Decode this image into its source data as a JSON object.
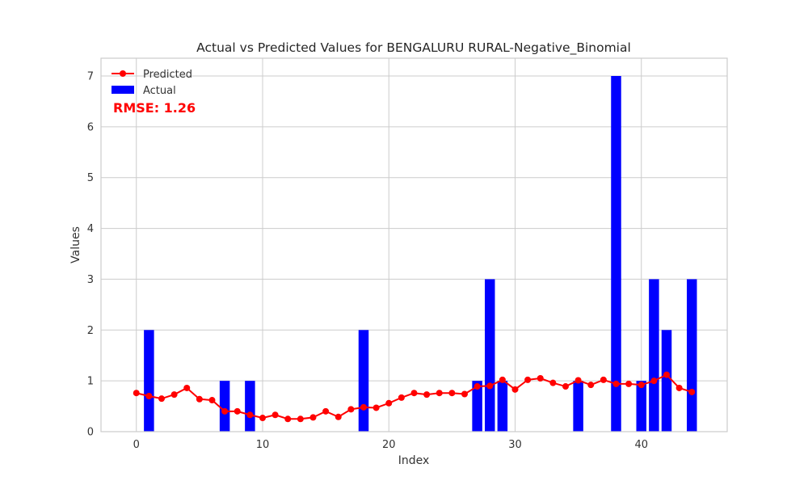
{
  "chart_data": {
    "type": "bar+line",
    "title": "Actual vs Predicted Values for BENGALURU RURAL-Negative_Binomial",
    "xlabel": "Index",
    "ylabel": "Values",
    "xlim": [
      -2.8,
      46.8
    ],
    "ylim": [
      0,
      7.35
    ],
    "x_ticks": [
      0,
      10,
      20,
      30,
      40
    ],
    "y_ticks": [
      0,
      1,
      2,
      3,
      4,
      5,
      6,
      7
    ],
    "grid": true,
    "legend_position": "top-left",
    "annotation": {
      "text": "RMSE: 1.26",
      "color": "#ff0000"
    },
    "series": [
      {
        "name": "Predicted",
        "kind": "line",
        "color": "#ff0000",
        "x": [
          0,
          1,
          2,
          3,
          4,
          5,
          6,
          7,
          8,
          9,
          10,
          11,
          12,
          13,
          14,
          15,
          16,
          17,
          18,
          19,
          20,
          21,
          22,
          23,
          24,
          25,
          26,
          27,
          28,
          29,
          30,
          31,
          32,
          33,
          34,
          35,
          36,
          37,
          38,
          39,
          40,
          41,
          42,
          43,
          44
        ],
        "values": [
          0.76,
          0.7,
          0.65,
          0.73,
          0.86,
          0.64,
          0.62,
          0.4,
          0.4,
          0.33,
          0.27,
          0.33,
          0.25,
          0.25,
          0.28,
          0.4,
          0.29,
          0.44,
          0.48,
          0.47,
          0.56,
          0.67,
          0.76,
          0.73,
          0.76,
          0.76,
          0.74,
          0.89,
          0.9,
          1.02,
          0.83,
          1.02,
          1.05,
          0.96,
          0.89,
          1.01,
          0.92,
          1.02,
          0.94,
          0.94,
          0.92,
          1.0,
          1.12,
          0.86,
          0.78
        ]
      },
      {
        "name": "Actual",
        "kind": "bar",
        "color": "#0000ff",
        "x": [
          0,
          1,
          2,
          3,
          4,
          5,
          6,
          7,
          8,
          9,
          10,
          11,
          12,
          13,
          14,
          15,
          16,
          17,
          18,
          19,
          20,
          21,
          22,
          23,
          24,
          25,
          26,
          27,
          28,
          29,
          30,
          31,
          32,
          33,
          34,
          35,
          36,
          37,
          38,
          39,
          40,
          41,
          42,
          43,
          44
        ],
        "values": [
          0,
          2,
          0,
          0,
          0,
          0,
          0,
          1,
          0,
          1,
          0,
          0,
          0,
          0,
          0,
          0,
          0,
          0,
          2,
          0,
          0,
          0,
          0,
          0,
          0,
          0,
          0,
          1,
          3,
          1,
          0,
          0,
          0,
          0,
          0,
          1,
          0,
          0,
          7,
          0,
          1,
          3,
          2,
          0,
          3
        ]
      }
    ]
  }
}
